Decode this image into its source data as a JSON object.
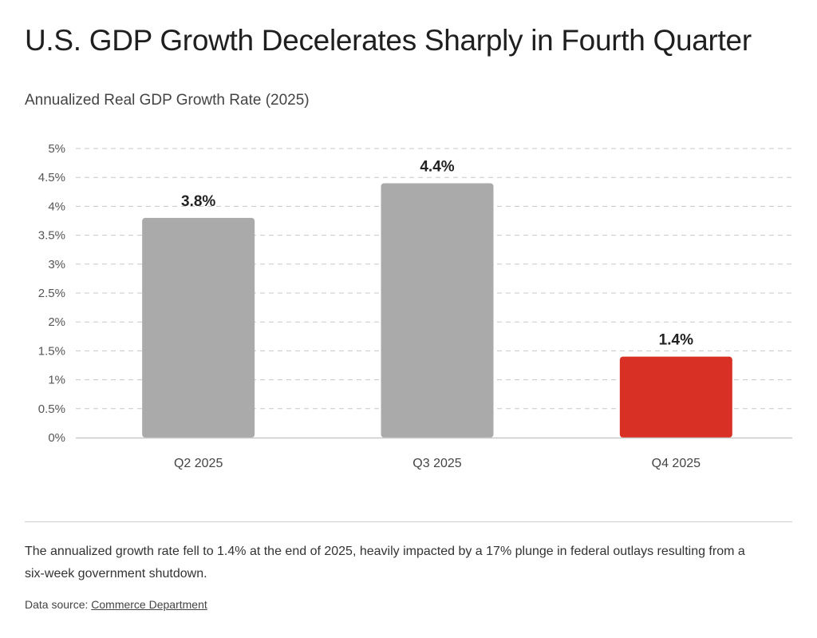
{
  "header": {
    "title": "U.S. GDP Growth Decelerates Sharply in Fourth Quarter",
    "subtitle": "Annualized Real GDP Growth Rate (2025)"
  },
  "chart_data": {
    "type": "bar",
    "title": "U.S. GDP Growth Decelerates Sharply in Fourth Quarter",
    "subtitle": "Annualized Real GDP Growth Rate (2025)",
    "categories": [
      "Q2 2025",
      "Q3 2025",
      "Q4 2025"
    ],
    "values": [
      3.8,
      4.4,
      1.4
    ],
    "data_labels": [
      "3.8%",
      "4.4%",
      "1.4%"
    ],
    "colors": [
      "#aaaaaa",
      "#aaaaaa",
      "#d93025"
    ],
    "ylim": [
      0,
      5
    ],
    "yticks": [
      0,
      0.5,
      1,
      1.5,
      2,
      2.5,
      3,
      3.5,
      4,
      4.5,
      5
    ],
    "ytick_labels": [
      "0%",
      "0.5%",
      "1%",
      "1.5%",
      "2%",
      "2.5%",
      "3%",
      "3.5%",
      "4%",
      "4.5%",
      "5%"
    ],
    "grid": "horizontal dashed",
    "xlabel": "",
    "ylabel": ""
  },
  "footer": {
    "note": "The annualized growth rate fell to 1.4% at the end of 2025, heavily impacted by a 17% plunge in federal outlays resulting from a six-week government shutdown.",
    "source_label": "Data source:",
    "source_link": "Commerce Department"
  }
}
